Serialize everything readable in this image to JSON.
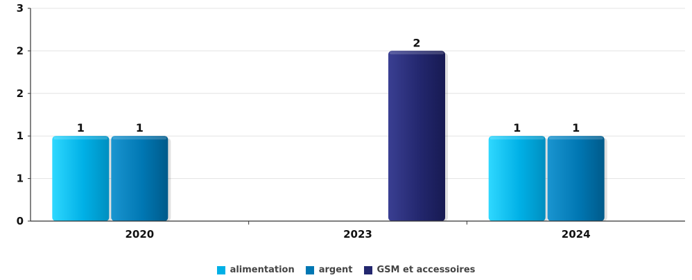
{
  "chart_data": {
    "type": "bar",
    "categories": [
      "2020",
      "2023",
      "2024"
    ],
    "series": [
      {
        "name": "alimentation",
        "color": "#00b0e6",
        "values": [
          1,
          null,
          1
        ]
      },
      {
        "name": "argent",
        "color": "#0077b3",
        "values": [
          1,
          null,
          1
        ]
      },
      {
        "name": "GSM et accessoires",
        "color": "#23276e",
        "values": [
          null,
          2,
          null
        ]
      }
    ],
    "data_labels": [
      {
        "category": "2020",
        "series": "alimentation",
        "text": "1"
      },
      {
        "category": "2020",
        "series": "argent",
        "text": "1"
      },
      {
        "category": "2023",
        "series": "GSM et accessoires",
        "text": "2"
      },
      {
        "category": "2024",
        "series": "alimentation",
        "text": "1"
      },
      {
        "category": "2024",
        "series": "argent",
        "text": "1"
      }
    ],
    "y_tick_labels": [
      "0",
      "1",
      "1",
      "2",
      "2",
      "3"
    ],
    "ylim": [
      0,
      2.5
    ],
    "grid": true,
    "legend_position": "bottom",
    "title": "",
    "xlabel": "",
    "ylabel": ""
  }
}
